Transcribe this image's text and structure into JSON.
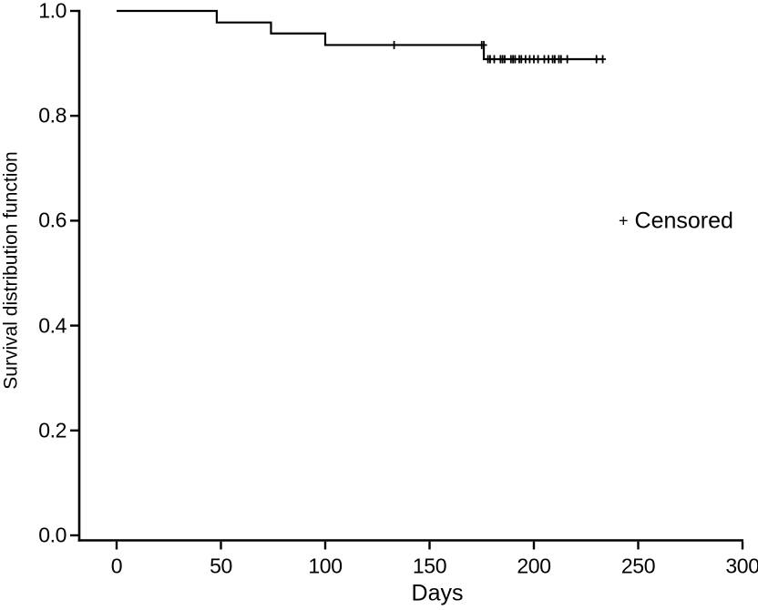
{
  "figure": {
    "background_color": "#ffffff",
    "line_color": "#000000",
    "text_color": "#000000"
  },
  "chart_data": {
    "type": "line",
    "subtype": "kaplan-meier-step-survival-curve",
    "title": "",
    "xlabel": "Days",
    "ylabel": "Survival distribution function",
    "xlim": [
      0,
      300
    ],
    "ylim": [
      0.0,
      1.0
    ],
    "grid": false,
    "xticks": {
      "values": [
        0,
        50,
        100,
        150,
        200,
        250,
        300
      ],
      "labels": [
        "0",
        "50",
        "100",
        "150",
        "200",
        "250",
        "300"
      ]
    },
    "yticks": {
      "values": [
        0.0,
        0.2,
        0.4,
        0.6,
        0.8,
        1.0
      ],
      "labels": [
        "0.0",
        "0.2",
        "0.4",
        "0.6",
        "0.8",
        "1.0"
      ]
    },
    "legend": {
      "marker": "+",
      "label": "Censored",
      "position": "right-middle"
    },
    "series": [
      {
        "name": "Survival distribution function",
        "steps": [
          [
            0,
            1.0
          ],
          [
            48,
            0.978
          ],
          [
            74,
            0.957
          ],
          [
            100,
            0.935
          ],
          [
            176,
            0.908
          ]
        ],
        "end_day": 233
      }
    ],
    "censored_points": [
      [
        133,
        0.935
      ],
      [
        175,
        0.935
      ],
      [
        176,
        0.935
      ],
      [
        178,
        0.908
      ],
      [
        179,
        0.908
      ],
      [
        181,
        0.908
      ],
      [
        184,
        0.908
      ],
      [
        185,
        0.908
      ],
      [
        186,
        0.908
      ],
      [
        189,
        0.908
      ],
      [
        190,
        0.908
      ],
      [
        191,
        0.908
      ],
      [
        193,
        0.908
      ],
      [
        194,
        0.908
      ],
      [
        196,
        0.908
      ],
      [
        198,
        0.908
      ],
      [
        200,
        0.908
      ],
      [
        202,
        0.908
      ],
      [
        205,
        0.908
      ],
      [
        207,
        0.908
      ],
      [
        209,
        0.908
      ],
      [
        210,
        0.908
      ],
      [
        212,
        0.908
      ],
      [
        213,
        0.908
      ],
      [
        216,
        0.908
      ],
      [
        230,
        0.908
      ],
      [
        233,
        0.908
      ]
    ]
  }
}
